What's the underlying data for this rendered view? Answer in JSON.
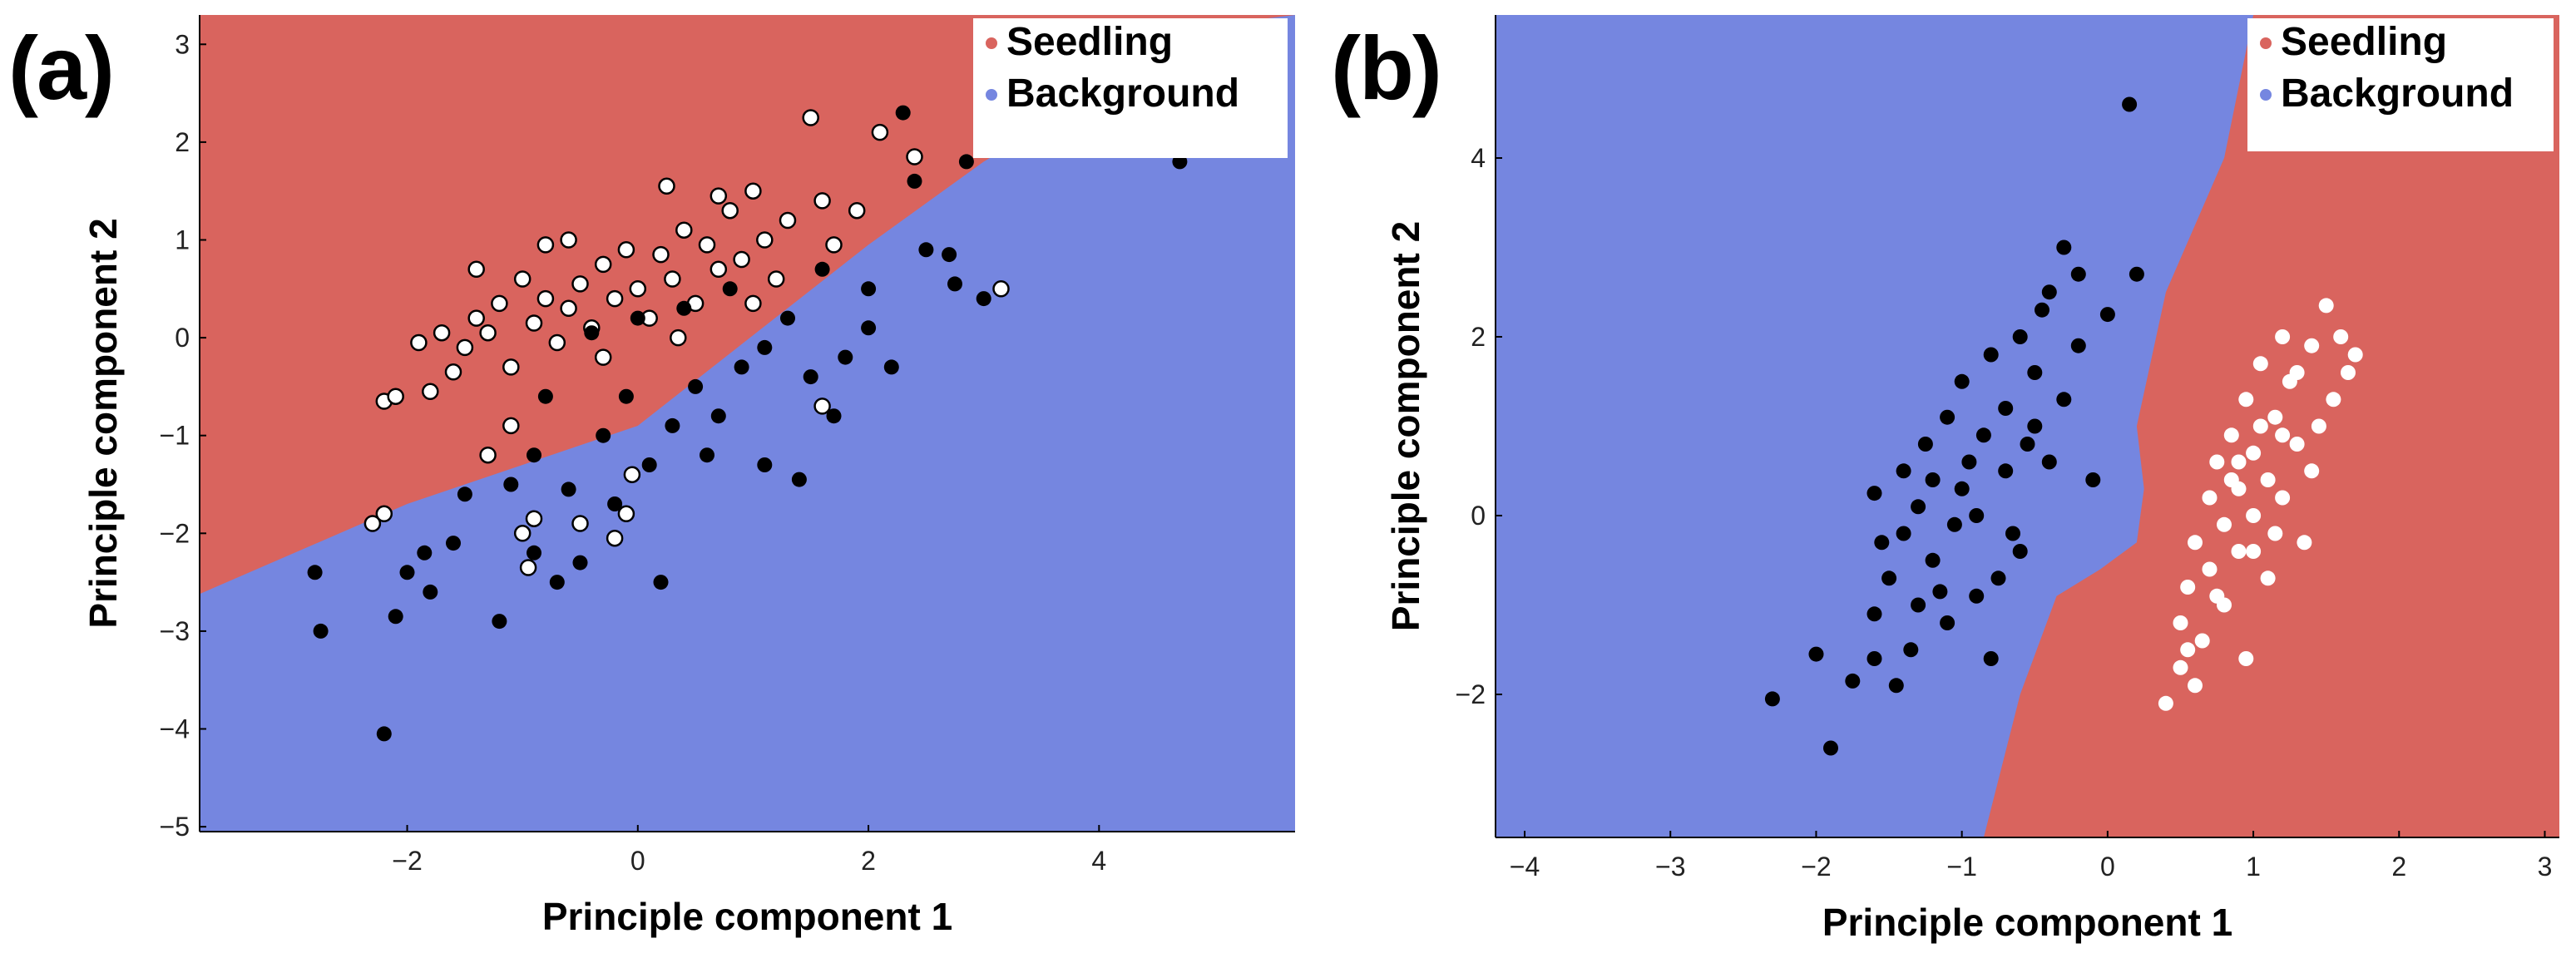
{
  "chart_data": [
    {
      "type": "scatter",
      "panel_label": "(a)",
      "title": "",
      "xlabel": "Principle component 1",
      "ylabel": "Principle component 2",
      "xlim": [
        -3.8,
        5.7
      ],
      "ylim": [
        -5.05,
        3.3
      ],
      "xticks": [
        -2,
        0,
        2,
        4
      ],
      "yticks": [
        -5,
        -4,
        -3,
        -2,
        -1,
        0,
        1,
        2,
        3
      ],
      "tick_labels_x": [
        "−2",
        "0",
        "2",
        "4"
      ],
      "tick_labels_y": [
        "−5",
        "−4",
        "−3",
        "−2",
        "−1",
        "0",
        "1",
        "2",
        "3"
      ],
      "grid": false,
      "legend": {
        "placement": "top-right",
        "entries": [
          {
            "label": "Seedling",
            "color": "#D9645E"
          },
          {
            "label": "Background",
            "color": "#7586E0"
          }
        ]
      },
      "regions": {
        "seedling_color": "#D9645E",
        "background_color": "#7586E0",
        "boundary": [
          [
            -3.8,
            -2.62
          ],
          [
            -2.0,
            -1.7
          ],
          [
            0.0,
            -0.9
          ],
          [
            2.0,
            0.95
          ],
          [
            3.0,
            1.8
          ],
          [
            5.0,
            3.2
          ],
          [
            5.7,
            3.3
          ]
        ]
      },
      "series": [
        {
          "name": "Seedling samples",
          "marker": "white circle, black edge",
          "points": [
            [
              -2.2,
              -0.65
            ],
            [
              -2.1,
              -0.6
            ],
            [
              -1.9,
              -0.05
            ],
            [
              -1.8,
              -0.55
            ],
            [
              -1.7,
              0.05
            ],
            [
              -1.6,
              -0.35
            ],
            [
              -1.5,
              -0.1
            ],
            [
              -1.4,
              0.2
            ],
            [
              -1.3,
              0.05
            ],
            [
              -1.2,
              0.35
            ],
            [
              -1.1,
              -0.3
            ],
            [
              -1.0,
              0.6
            ],
            [
              -0.9,
              0.15
            ],
            [
              -0.8,
              0.4
            ],
            [
              -0.7,
              -0.05
            ],
            [
              -0.6,
              0.3
            ],
            [
              -0.5,
              0.55
            ],
            [
              -0.4,
              0.1
            ],
            [
              -0.3,
              0.75
            ],
            [
              -0.2,
              0.4
            ],
            [
              -0.1,
              0.9
            ],
            [
              0.0,
              0.5
            ],
            [
              0.1,
              0.2
            ],
            [
              0.2,
              0.85
            ],
            [
              0.3,
              0.6
            ],
            [
              0.4,
              1.1
            ],
            [
              0.5,
              0.35
            ],
            [
              0.6,
              0.95
            ],
            [
              0.7,
              0.7
            ],
            [
              0.8,
              1.3
            ],
            [
              0.9,
              0.8
            ],
            [
              1.0,
              1.5
            ],
            [
              1.1,
              1.0
            ],
            [
              1.2,
              0.6
            ],
            [
              1.3,
              1.2
            ],
            [
              1.5,
              2.25
            ],
            [
              1.6,
              1.4
            ],
            [
              1.7,
              0.95
            ],
            [
              1.9,
              1.3
            ],
            [
              2.1,
              2.1
            ],
            [
              2.4,
              1.85
            ],
            [
              3.15,
              0.5
            ],
            [
              -2.3,
              -1.9
            ],
            [
              -2.2,
              -1.8
            ],
            [
              -1.1,
              -0.9
            ],
            [
              -1.0,
              -2.0
            ],
            [
              -0.9,
              -1.85
            ],
            [
              -0.95,
              -2.35
            ],
            [
              -0.5,
              -1.9
            ],
            [
              -0.2,
              -2.05
            ],
            [
              -0.1,
              -1.8
            ],
            [
              -1.3,
              -1.2
            ],
            [
              1.6,
              -0.7
            ],
            [
              -0.05,
              -1.4
            ],
            [
              0.7,
              1.45
            ],
            [
              -0.6,
              1.0
            ],
            [
              -1.4,
              0.7
            ],
            [
              0.25,
              1.55
            ],
            [
              1.0,
              0.35
            ],
            [
              0.35,
              0.0
            ],
            [
              -0.3,
              -0.2
            ],
            [
              -0.8,
              0.95
            ]
          ]
        },
        {
          "name": "Background samples",
          "marker": "black filled circle",
          "points": [
            [
              -2.2,
              -4.05
            ],
            [
              -2.75,
              -3.0
            ],
            [
              -2.8,
              -2.4
            ],
            [
              -2.1,
              -2.85
            ],
            [
              -2.0,
              -2.4
            ],
            [
              -1.85,
              -2.2
            ],
            [
              -1.6,
              -2.1
            ],
            [
              -1.2,
              -2.9
            ],
            [
              -1.1,
              -1.5
            ],
            [
              -0.9,
              -1.2
            ],
            [
              -0.7,
              -2.5
            ],
            [
              -0.5,
              -2.3
            ],
            [
              -0.3,
              -1.0
            ],
            [
              -0.1,
              -0.6
            ],
            [
              0.1,
              -1.3
            ],
            [
              0.2,
              -2.5
            ],
            [
              0.3,
              -0.9
            ],
            [
              0.5,
              -0.5
            ],
            [
              0.7,
              -0.8
            ],
            [
              0.9,
              -0.3
            ],
            [
              1.1,
              -0.1
            ],
            [
              1.3,
              0.2
            ],
            [
              1.5,
              -0.4
            ],
            [
              1.7,
              -0.8
            ],
            [
              1.8,
              -0.2
            ],
            [
              2.0,
              0.1
            ],
            [
              2.2,
              -0.3
            ],
            [
              2.3,
              2.3
            ],
            [
              2.4,
              1.6
            ],
            [
              2.5,
              0.9
            ],
            [
              2.7,
              0.85
            ],
            [
              2.75,
              0.55
            ],
            [
              2.85,
              1.8
            ],
            [
              3.0,
              0.4
            ],
            [
              4.7,
              1.8
            ],
            [
              2.0,
              0.5
            ],
            [
              1.6,
              0.7
            ],
            [
              -0.4,
              0.05
            ],
            [
              0.0,
              0.2
            ],
            [
              0.4,
              0.3
            ],
            [
              0.8,
              0.5
            ],
            [
              -0.8,
              -0.6
            ],
            [
              -0.6,
              -1.55
            ],
            [
              -0.2,
              -1.7
            ],
            [
              0.6,
              -1.2
            ],
            [
              1.1,
              -1.3
            ],
            [
              1.4,
              -1.45
            ],
            [
              -1.5,
              -1.6
            ],
            [
              -1.8,
              -2.6
            ],
            [
              -0.9,
              -2.2
            ]
          ]
        }
      ]
    },
    {
      "type": "scatter",
      "panel_label": "(b)",
      "title": "",
      "xlabel": "Principle component 1",
      "ylabel": "Principle component 2",
      "xlim": [
        -4.2,
        3.1
      ],
      "ylim": [
        -3.6,
        5.6
      ],
      "xticks": [
        -4,
        -3,
        -2,
        -1,
        0,
        1,
        2,
        3
      ],
      "yticks": [
        -2,
        0,
        2,
        4
      ],
      "tick_labels_x": [
        "−4",
        "−3",
        "−2",
        "−1",
        "0",
        "1",
        "2",
        "3"
      ],
      "tick_labels_y": [
        "−2",
        "0",
        "2",
        "4"
      ],
      "grid": false,
      "legend": {
        "placement": "top-right",
        "entries": [
          {
            "label": "Seedling",
            "color": "#D9645E"
          },
          {
            "label": "Background",
            "color": "#7586E0"
          }
        ]
      },
      "regions": {
        "seedling_color": "#D9645E",
        "background_color": "#7586E0",
        "boundary": [
          [
            -0.85,
            -3.6
          ],
          [
            -0.6,
            -2.0
          ],
          [
            -0.35,
            -0.9
          ],
          [
            -0.05,
            -0.6
          ],
          [
            0.2,
            -0.3
          ],
          [
            0.25,
            0.3
          ],
          [
            0.2,
            1.0
          ],
          [
            0.4,
            2.5
          ],
          [
            0.8,
            4.0
          ],
          [
            1.0,
            5.6
          ]
        ]
      },
      "series": [
        {
          "name": "Background samples",
          "marker": "black filled circle",
          "points": [
            [
              -2.3,
              -2.05
            ],
            [
              -1.9,
              -2.6
            ],
            [
              -1.75,
              -1.85
            ],
            [
              -1.6,
              -1.1
            ],
            [
              -1.55,
              -0.3
            ],
            [
              -1.6,
              0.25
            ],
            [
              -1.5,
              -0.7
            ],
            [
              -1.4,
              -0.2
            ],
            [
              -1.4,
              0.5
            ],
            [
              -1.3,
              -1.0
            ],
            [
              -1.3,
              0.1
            ],
            [
              -1.25,
              0.8
            ],
            [
              -1.2,
              -0.5
            ],
            [
              -1.1,
              1.1
            ],
            [
              -1.1,
              -1.2
            ],
            [
              -1.0,
              0.3
            ],
            [
              -1.0,
              1.5
            ],
            [
              -0.9,
              0.0
            ],
            [
              -0.9,
              -0.9
            ],
            [
              -0.85,
              0.9
            ],
            [
              -0.8,
              1.8
            ],
            [
              -0.8,
              -1.6
            ],
            [
              -0.7,
              0.5
            ],
            [
              -0.7,
              1.2
            ],
            [
              -0.6,
              2.0
            ],
            [
              -0.6,
              -0.4
            ],
            [
              -0.5,
              1.0
            ],
            [
              -0.5,
              1.6
            ],
            [
              -0.4,
              2.5
            ],
            [
              -0.4,
              0.6
            ],
            [
              -0.3,
              1.3
            ],
            [
              -0.3,
              3.0
            ],
            [
              -0.2,
              1.9
            ],
            [
              -0.2,
              2.7
            ],
            [
              -0.1,
              0.4
            ],
            [
              0.15,
              4.6
            ],
            [
              0.2,
              2.7
            ],
            [
              0.0,
              2.25
            ],
            [
              -1.05,
              -0.1
            ],
            [
              -0.95,
              0.6
            ],
            [
              -1.35,
              -1.5
            ],
            [
              -1.2,
              0.4
            ],
            [
              -0.65,
              -0.2
            ],
            [
              -0.55,
              0.8
            ],
            [
              -1.6,
              -1.6
            ],
            [
              -2.0,
              -1.55
            ],
            [
              -0.75,
              -0.7
            ],
            [
              -1.45,
              -1.9
            ],
            [
              -0.45,
              2.3
            ],
            [
              -1.15,
              -0.85
            ]
          ]
        },
        {
          "name": "Seedling samples",
          "marker": "white filled circle",
          "points": [
            [
              0.4,
              -2.1
            ],
            [
              0.5,
              -1.7
            ],
            [
              0.5,
              -1.2
            ],
            [
              0.55,
              -0.8
            ],
            [
              0.6,
              -0.3
            ],
            [
              0.65,
              -1.4
            ],
            [
              0.7,
              0.2
            ],
            [
              0.7,
              -0.6
            ],
            [
              0.75,
              0.6
            ],
            [
              0.8,
              -0.1
            ],
            [
              0.8,
              -1.0
            ],
            [
              0.85,
              0.9
            ],
            [
              0.9,
              0.3
            ],
            [
              0.9,
              -0.4
            ],
            [
              0.95,
              1.3
            ],
            [
              1.0,
              0.7
            ],
            [
              1.0,
              0.0
            ],
            [
              1.05,
              1.7
            ],
            [
              1.1,
              0.4
            ],
            [
              1.1,
              -0.7
            ],
            [
              1.15,
              1.1
            ],
            [
              1.2,
              2.0
            ],
            [
              1.2,
              0.2
            ],
            [
              1.25,
              1.5
            ],
            [
              1.3,
              0.8
            ],
            [
              1.35,
              -0.3
            ],
            [
              1.4,
              1.9
            ],
            [
              1.45,
              1.0
            ],
            [
              1.5,
              2.35
            ],
            [
              1.55,
              1.3
            ],
            [
              1.6,
              2.0
            ],
            [
              1.65,
              1.6
            ],
            [
              0.95,
              -1.6
            ],
            [
              0.6,
              -1.9
            ],
            [
              1.05,
              1.0
            ],
            [
              0.85,
              0.4
            ],
            [
              1.15,
              -0.2
            ],
            [
              0.75,
              -0.9
            ],
            [
              1.3,
              1.6
            ],
            [
              1.2,
              0.9
            ],
            [
              0.9,
              0.6
            ],
            [
              1.0,
              -0.4
            ],
            [
              1.4,
              0.5
            ],
            [
              1.7,
              1.8
            ],
            [
              0.55,
              -1.5
            ]
          ]
        }
      ]
    }
  ]
}
